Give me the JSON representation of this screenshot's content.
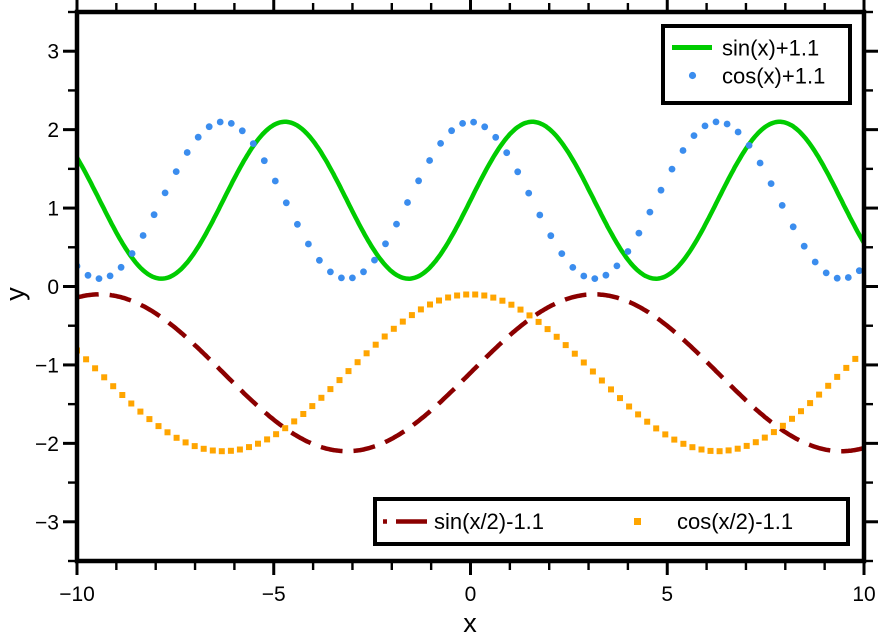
{
  "chart_data": {
    "type": "line",
    "title": "",
    "xlabel": "x",
    "ylabel": "y",
    "xlim": [
      -10,
      10
    ],
    "ylim": [
      -3.5,
      3.5
    ],
    "grid": false,
    "background": "#ffffff",
    "axis_color": "#000000",
    "x_major_ticks": [
      -10,
      -5,
      0,
      5,
      10
    ],
    "x_major_tick_labels": [
      "−10",
      "−5",
      "0",
      "5",
      "10"
    ],
    "x_minor_step": 1,
    "y_major_ticks": [
      -3,
      -2,
      -1,
      0,
      1,
      2,
      3
    ],
    "y_major_tick_labels": [
      "−3",
      "−2",
      "−1",
      "0",
      "1",
      "2",
      "3"
    ],
    "y_minor_step": 0.5,
    "series": [
      {
        "name": "sin(x)+1.1",
        "expr": "sin(x)+1.1",
        "fn": "sin",
        "freq": 1,
        "amplitude": 1,
        "offset": 1.1,
        "y_range": [
          0.1,
          2.1
        ],
        "style": "solid",
        "color": "#00cc00",
        "linewidth": 4.5
      },
      {
        "name": "cos(x)+1.1",
        "expr": "cos(x)+1.1",
        "fn": "cos",
        "freq": 1,
        "amplitude": 1,
        "offset": 1.1,
        "y_range": [
          0.1,
          2.1
        ],
        "style": "dot-markers",
        "marker": "circle",
        "color": "#3b8dee",
        "marker_size": 6.8,
        "marker_step": 0.28
      },
      {
        "name": "sin(x/2)-1.1",
        "expr": "sin(x/2)-1.1",
        "fn": "sin",
        "freq": 0.5,
        "amplitude": 1,
        "offset": -1.1,
        "y_range": [
          -2.1,
          -0.1
        ],
        "style": "dashed",
        "color": "#8b0000",
        "linewidth": 4.5,
        "dash": [
          22,
          11
        ]
      },
      {
        "name": "cos(x/2)-1.1",
        "expr": "cos(x/2)-1.1",
        "fn": "cos",
        "freq": 0.5,
        "amplitude": 1,
        "offset": -1.1,
        "y_range": [
          -2.1,
          -0.1
        ],
        "style": "square-markers",
        "marker": "square",
        "color": "#ffa500",
        "marker_size": 6,
        "marker_step": 0.23
      }
    ],
    "legends": [
      {
        "position": "top-right",
        "border_color": "#000000",
        "background": "#ffffff",
        "entries": [
          {
            "series": 0,
            "label": "sin(x)+1.1"
          },
          {
            "series": 1,
            "label": "cos(x)+1.1"
          }
        ]
      },
      {
        "position": "bottom-center",
        "border_color": "#000000",
        "background": "#ffffff",
        "entries": [
          {
            "series": 2,
            "label": "sin(x/2)-1.1"
          },
          {
            "series": 3,
            "label": "cos(x/2)-1.1"
          }
        ]
      }
    ]
  }
}
